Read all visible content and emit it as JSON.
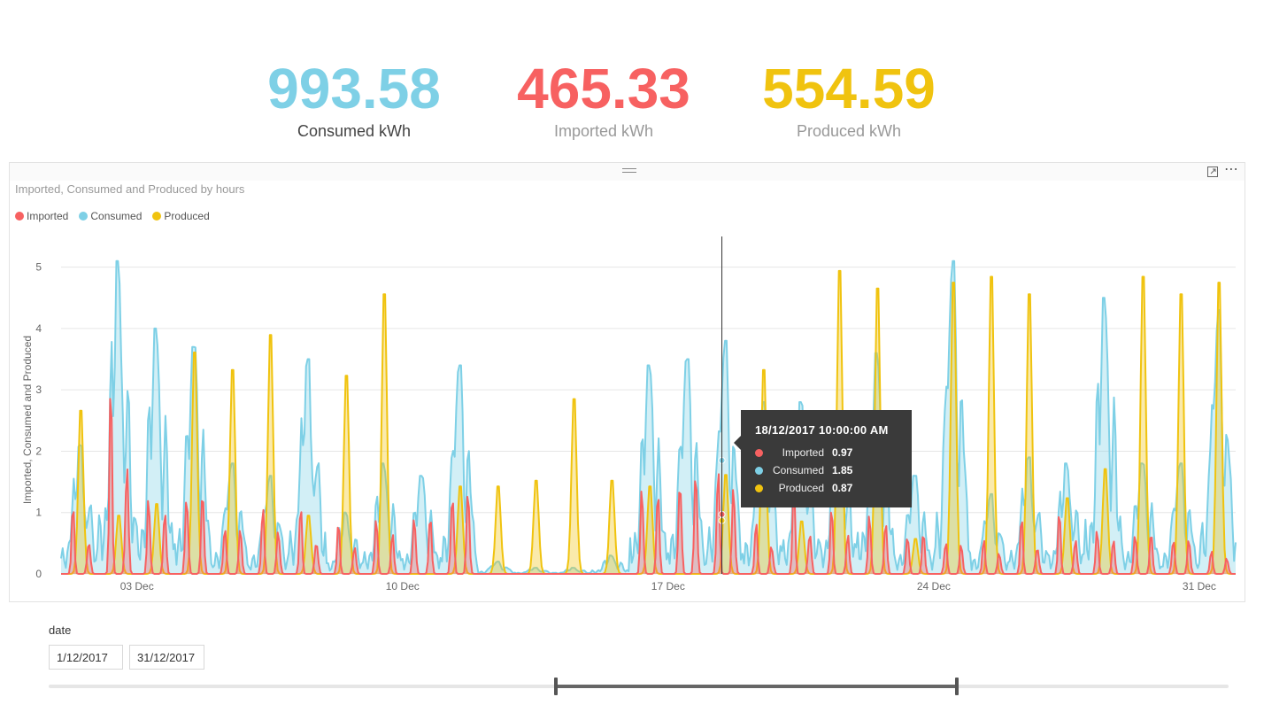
{
  "kpis": {
    "consumed": {
      "value": "993.58",
      "label": "Consumed kWh",
      "color": "#7ed0e6"
    },
    "imported": {
      "value": "465.33",
      "label": "Imported kWh",
      "color": "#f76161"
    },
    "produced": {
      "value": "554.59",
      "label": "Produced kWh",
      "color": "#f0c30f"
    }
  },
  "visual": {
    "title": "Imported, Consumed and Produced by hours",
    "focus_icon": "focus-mode-icon",
    "more_icon": "more-options-icon",
    "more_glyph": "⋯"
  },
  "chart_data": {
    "type": "area",
    "title": "Imported, Consumed and Produced by hours",
    "xlabel": "",
    "ylabel": "Imported, Consumed and Produced",
    "ylim": [
      0,
      5.5
    ],
    "yticks": [
      0,
      1,
      2,
      3,
      4,
      5
    ],
    "xrange": [
      "2017-12-01",
      "2017-12-31"
    ],
    "xticks": [
      {
        "date": "2017-12-03",
        "label": "03 Dec"
      },
      {
        "date": "2017-12-10",
        "label": "10 Dec"
      },
      {
        "date": "2017-12-17",
        "label": "17 Dec"
      },
      {
        "date": "2017-12-24",
        "label": "24 Dec"
      },
      {
        "date": "2017-12-31",
        "label": "31 Dec"
      }
    ],
    "grid": true,
    "legend_position": "top-left",
    "series": [
      {
        "name": "Imported",
        "color": "#f76161"
      },
      {
        "name": "Consumed",
        "color": "#7ed0e6"
      },
      {
        "name": "Produced",
        "color": "#f0c30f"
      }
    ],
    "produced_daily_peaks": [
      {
        "date": "2017-12-01",
        "value": 2.8
      },
      {
        "date": "2017-12-02",
        "value": 1.0
      },
      {
        "date": "2017-12-03",
        "value": 1.2
      },
      {
        "date": "2017-12-04",
        "value": 3.8
      },
      {
        "date": "2017-12-05",
        "value": 3.5
      },
      {
        "date": "2017-12-06",
        "value": 4.1
      },
      {
        "date": "2017-12-07",
        "value": 1.0
      },
      {
        "date": "2017-12-08",
        "value": 3.4
      },
      {
        "date": "2017-12-09",
        "value": 4.8
      },
      {
        "date": "2017-12-10",
        "value": 0.0
      },
      {
        "date": "2017-12-11",
        "value": 1.5
      },
      {
        "date": "2017-12-12",
        "value": 1.5
      },
      {
        "date": "2017-12-13",
        "value": 1.6
      },
      {
        "date": "2017-12-14",
        "value": 3.0
      },
      {
        "date": "2017-12-15",
        "value": 1.6
      },
      {
        "date": "2017-12-16",
        "value": 1.5
      },
      {
        "date": "2017-12-17",
        "value": 0.0
      },
      {
        "date": "2017-12-18",
        "value": 1.7
      },
      {
        "date": "2017-12-19",
        "value": 3.5
      },
      {
        "date": "2017-12-20",
        "value": 0.9
      },
      {
        "date": "2017-12-21",
        "value": 5.2
      },
      {
        "date": "2017-12-22",
        "value": 4.9
      },
      {
        "date": "2017-12-23",
        "value": 0.6
      },
      {
        "date": "2017-12-24",
        "value": 5.0
      },
      {
        "date": "2017-12-25",
        "value": 5.1
      },
      {
        "date": "2017-12-26",
        "value": 4.8
      },
      {
        "date": "2017-12-27",
        "value": 1.3
      },
      {
        "date": "2017-12-28",
        "value": 1.8
      },
      {
        "date": "2017-12-29",
        "value": 5.1
      },
      {
        "date": "2017-12-30",
        "value": 4.8
      },
      {
        "date": "2017-12-31",
        "value": 5.0
      }
    ],
    "consumed_daily_peaks": [
      {
        "date": "2017-12-01",
        "value": 2.1
      },
      {
        "date": "2017-12-02",
        "value": 5.1
      },
      {
        "date": "2017-12-03",
        "value": 4.0
      },
      {
        "date": "2017-12-04",
        "value": 3.7
      },
      {
        "date": "2017-12-05",
        "value": 1.8
      },
      {
        "date": "2017-12-06",
        "value": 1.6
      },
      {
        "date": "2017-12-07",
        "value": 3.5
      },
      {
        "date": "2017-12-08",
        "value": 1.0
      },
      {
        "date": "2017-12-09",
        "value": 1.8
      },
      {
        "date": "2017-12-10",
        "value": 1.6
      },
      {
        "date": "2017-12-11",
        "value": 3.4
      },
      {
        "date": "2017-12-12",
        "value": 0.2
      },
      {
        "date": "2017-12-13",
        "value": 0.1
      },
      {
        "date": "2017-12-14",
        "value": 0.1
      },
      {
        "date": "2017-12-15",
        "value": 0.3
      },
      {
        "date": "2017-12-16",
        "value": 3.4
      },
      {
        "date": "2017-12-17",
        "value": 3.5
      },
      {
        "date": "2017-12-18",
        "value": 3.8
      },
      {
        "date": "2017-12-19",
        "value": 2.8
      },
      {
        "date": "2017-12-20",
        "value": 2.8
      },
      {
        "date": "2017-12-21",
        "value": 2.6
      },
      {
        "date": "2017-12-22",
        "value": 3.6
      },
      {
        "date": "2017-12-23",
        "value": 1.6
      },
      {
        "date": "2017-12-24",
        "value": 5.1
      },
      {
        "date": "2017-12-25",
        "value": 1.3
      },
      {
        "date": "2017-12-26",
        "value": 1.9
      },
      {
        "date": "2017-12-27",
        "value": 1.8
      },
      {
        "date": "2017-12-28",
        "value": 4.5
      },
      {
        "date": "2017-12-29",
        "value": 1.8
      },
      {
        "date": "2017-12-30",
        "value": 1.8
      },
      {
        "date": "2017-12-31",
        "value": 4.3
      }
    ],
    "imported_daily_peaks": [
      {
        "date": "2017-12-01",
        "value": 1.2
      },
      {
        "date": "2017-12-02",
        "value": 3.4
      },
      {
        "date": "2017-12-03",
        "value": 1.6
      },
      {
        "date": "2017-12-04",
        "value": 2.0
      },
      {
        "date": "2017-12-05",
        "value": 1.2
      },
      {
        "date": "2017-12-06",
        "value": 1.4
      },
      {
        "date": "2017-12-07",
        "value": 1.2
      },
      {
        "date": "2017-12-08",
        "value": 0.9
      },
      {
        "date": "2017-12-09",
        "value": 1.1
      },
      {
        "date": "2017-12-10",
        "value": 1.4
      },
      {
        "date": "2017-12-11",
        "value": 2.1
      },
      {
        "date": "2017-12-12",
        "value": 0.0
      },
      {
        "date": "2017-12-13",
        "value": 0.0
      },
      {
        "date": "2017-12-14",
        "value": 0.0
      },
      {
        "date": "2017-12-15",
        "value": 0.0
      },
      {
        "date": "2017-12-16",
        "value": 2.0
      },
      {
        "date": "2017-12-17",
        "value": 2.5
      },
      {
        "date": "2017-12-18",
        "value": 2.5
      },
      {
        "date": "2017-12-19",
        "value": 1.0
      },
      {
        "date": "2017-12-20",
        "value": 1.5
      },
      {
        "date": "2017-12-21",
        "value": 1.2
      },
      {
        "date": "2017-12-22",
        "value": 1.3
      },
      {
        "date": "2017-12-23",
        "value": 1.0
      },
      {
        "date": "2017-12-24",
        "value": 0.8
      },
      {
        "date": "2017-12-25",
        "value": 0.7
      },
      {
        "date": "2017-12-26",
        "value": 1.0
      },
      {
        "date": "2017-12-27",
        "value": 1.1
      },
      {
        "date": "2017-12-28",
        "value": 0.9
      },
      {
        "date": "2017-12-29",
        "value": 1.0
      },
      {
        "date": "2017-12-30",
        "value": 0.9
      },
      {
        "date": "2017-12-31",
        "value": 0.5
      }
    ],
    "tooltip": {
      "datetime": "18/12/2017 10:00:00 AM",
      "rows": [
        {
          "name": "Imported",
          "value": "0.97",
          "color": "#f76161"
        },
        {
          "name": "Consumed",
          "value": "1.85",
          "color": "#7ed0e6"
        },
        {
          "name": "Produced",
          "value": "0.87",
          "color": "#f0c30f"
        }
      ]
    }
  },
  "slicer": {
    "label": "date",
    "start": "1/12/2017",
    "end": "31/12/2017",
    "range_selected": [
      0.43,
      0.77
    ]
  }
}
